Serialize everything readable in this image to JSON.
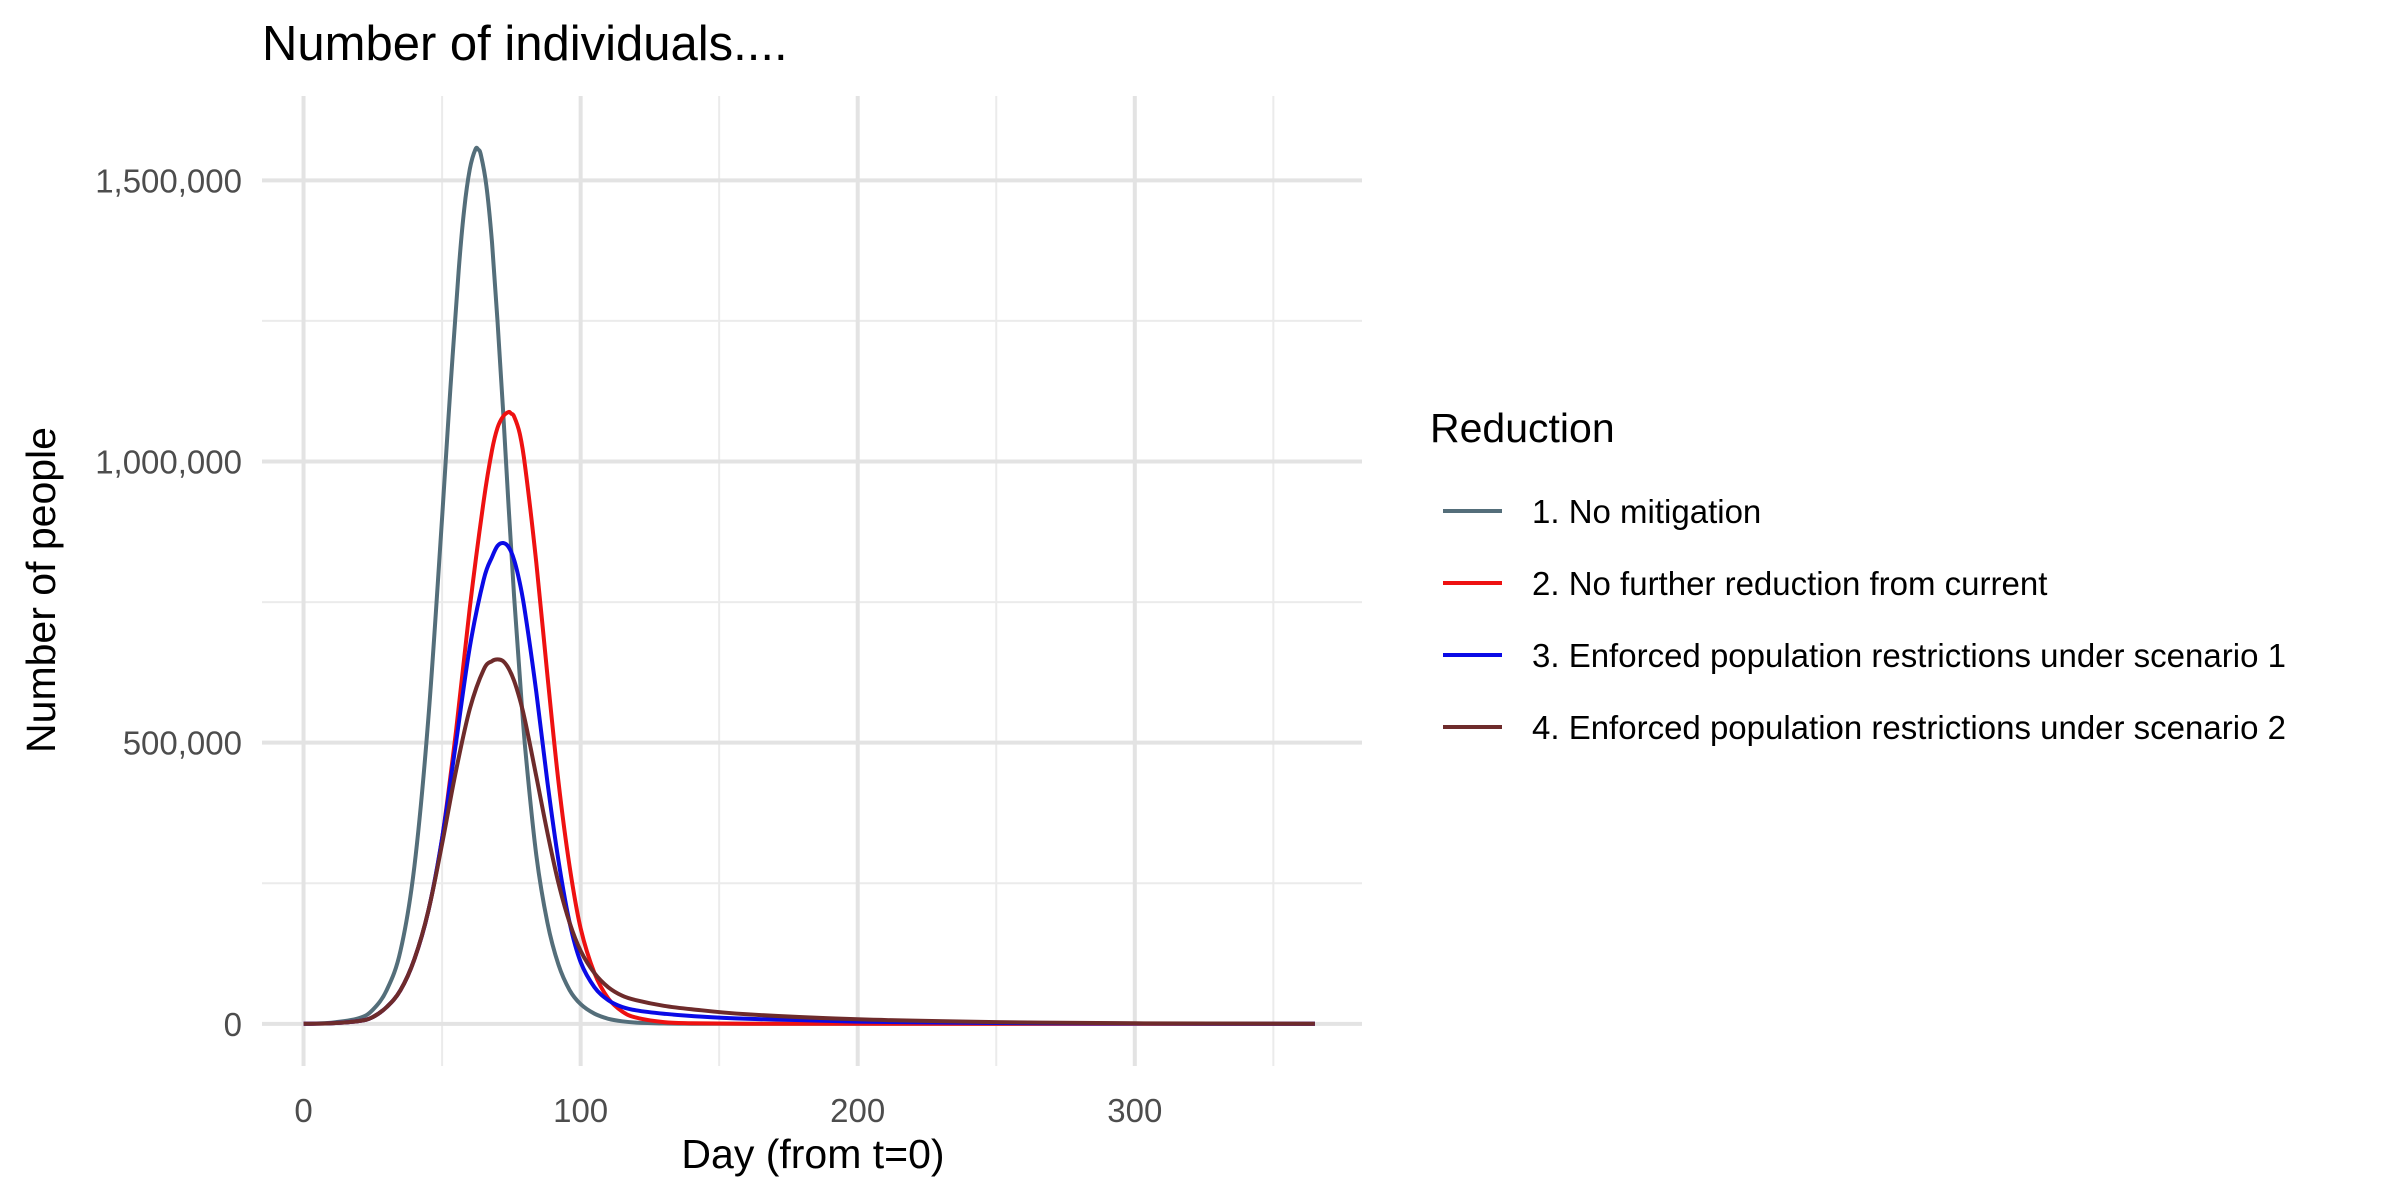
{
  "chart_data": {
    "type": "line",
    "title": "Number of individuals....",
    "xlabel": "Day (from t=0)",
    "ylabel": "Number of people",
    "xlim": [
      -15,
      382
    ],
    "ylim": [
      -75000,
      1650000
    ],
    "x_ticks": [
      0,
      100,
      200,
      300
    ],
    "x_tick_labels": [
      "0",
      "100",
      "200",
      "300"
    ],
    "x_minor_ticks": [
      50,
      150,
      250,
      350
    ],
    "y_ticks": [
      0,
      500000,
      1000000,
      1500000
    ],
    "y_tick_labels": [
      "0",
      "500,000",
      "1,000,000",
      "1,500,000"
    ],
    "y_minor_ticks": [
      250000,
      750000,
      1250000
    ],
    "grid": true,
    "legend_title": "Reduction",
    "legend_position": "right",
    "series": [
      {
        "name": "1. No mitigation",
        "color": "#546e7a",
        "x": [
          0,
          10,
          20,
          25,
          30,
          35,
          40,
          45,
          50,
          53,
          56,
          58,
          60,
          62,
          63,
          64,
          66,
          68,
          70,
          72,
          74,
          76,
          78,
          80,
          84,
          88,
          92,
          96,
          100,
          105,
          110,
          115,
          120,
          130,
          140,
          160,
          200,
          365
        ],
        "values": [
          0,
          2000,
          10000,
          25000,
          60000,
          130000,
          280000,
          540000,
          900000,
          1130000,
          1340000,
          1450000,
          1520000,
          1555000,
          1555000,
          1545000,
          1490000,
          1390000,
          1250000,
          1090000,
          920000,
          760000,
          620000,
          490000,
          300000,
          180000,
          105000,
          60000,
          35000,
          18000,
          9000,
          4500,
          2200,
          800,
          300,
          50,
          0,
          0
        ]
      },
      {
        "name": "2. No further reduction from current",
        "color": "#ee1111",
        "x": [
          0,
          10,
          20,
          25,
          30,
          35,
          40,
          45,
          50,
          55,
          60,
          65,
          68,
          70,
          72,
          74,
          75,
          76,
          78,
          80,
          84,
          88,
          92,
          96,
          100,
          105,
          110,
          115,
          120,
          130,
          140,
          160,
          200,
          250,
          300,
          365
        ],
        "values": [
          0,
          1000,
          5000,
          12000,
          30000,
          60000,
          115000,
          200000,
          330000,
          520000,
          740000,
          930000,
          1020000,
          1060000,
          1080000,
          1088000,
          1085000,
          1080000,
          1050000,
          990000,
          820000,
          620000,
          430000,
          280000,
          170000,
          90000,
          45000,
          22000,
          11000,
          3000,
          1000,
          200,
          0,
          0,
          0,
          0
        ]
      },
      {
        "name": "3. Enforced population restrictions under scenario 1",
        "color": "#0a0ae6",
        "x": [
          0,
          10,
          20,
          25,
          30,
          35,
          40,
          45,
          50,
          55,
          60,
          65,
          68,
          70,
          72,
          74,
          76,
          78,
          80,
          84,
          88,
          92,
          96,
          100,
          105,
          110,
          115,
          120,
          130,
          140,
          160,
          200,
          250,
          300,
          365
        ],
        "values": [
          0,
          1000,
          5000,
          12000,
          30000,
          60000,
          115000,
          200000,
          330000,
          500000,
          670000,
          790000,
          830000,
          850000,
          855000,
          848000,
          825000,
          785000,
          730000,
          590000,
          430000,
          290000,
          180000,
          110000,
          65000,
          42000,
          30000,
          24000,
          18000,
          14000,
          9000,
          4000,
          1500,
          500,
          0
        ]
      },
      {
        "name": "4. Enforced population restrictions under scenario 2",
        "color": "#6e2b2b",
        "x": [
          0,
          10,
          20,
          25,
          30,
          35,
          40,
          45,
          50,
          55,
          60,
          65,
          68,
          70,
          72,
          74,
          76,
          78,
          80,
          84,
          88,
          92,
          96,
          100,
          105,
          110,
          115,
          120,
          130,
          140,
          160,
          200,
          250,
          300,
          365
        ],
        "values": [
          0,
          1000,
          5000,
          12000,
          30000,
          60000,
          115000,
          200000,
          320000,
          450000,
          560000,
          630000,
          645000,
          648000,
          645000,
          632000,
          610000,
          578000,
          538000,
          440000,
          340000,
          250000,
          180000,
          130000,
          90000,
          65000,
          50000,
          42000,
          32000,
          26000,
          17000,
          8000,
          3000,
          1000,
          0
        ]
      }
    ]
  }
}
